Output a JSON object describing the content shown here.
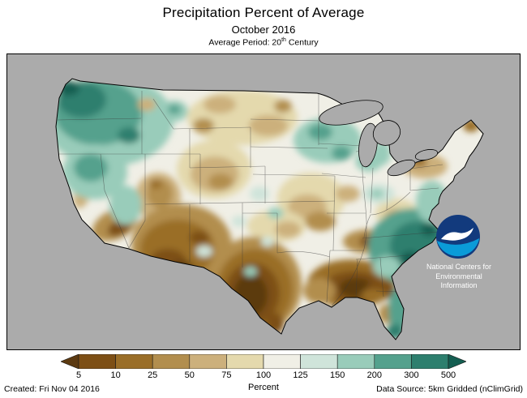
{
  "header": {
    "title": "Precipitation Percent of Average",
    "subtitle": "October 2016",
    "avg_period_prefix": "Average Period: 20",
    "avg_period_sup": "th",
    "avg_period_suffix": " Century"
  },
  "map": {
    "region": "Contiguous United States",
    "ncei_lines": [
      "National Centers for",
      "Environmental",
      "Information"
    ]
  },
  "legend": {
    "labels": [
      "5",
      "10",
      "25",
      "50",
      "75",
      "100",
      "125",
      "150",
      "200",
      "300",
      "500"
    ],
    "colors": [
      "#5c3a11",
      "#7d4f15",
      "#9a6e28",
      "#b28e4e",
      "#ccb07c",
      "#e4d9ad",
      "#f0efe6",
      "#cfe4da",
      "#99ccba",
      "#54a18d",
      "#2d7f6e",
      "#145e51"
    ],
    "unit_label": "Percent"
  },
  "footer": {
    "created": "Created: Fri Nov 04 2016",
    "data_source": "Data Source: 5km Gridded (nClimGrid)"
  },
  "colors": {
    "map_bg": "#ababab",
    "noaa_navy": "#123a7d",
    "noaa_cyan": "#0a9bd8"
  }
}
